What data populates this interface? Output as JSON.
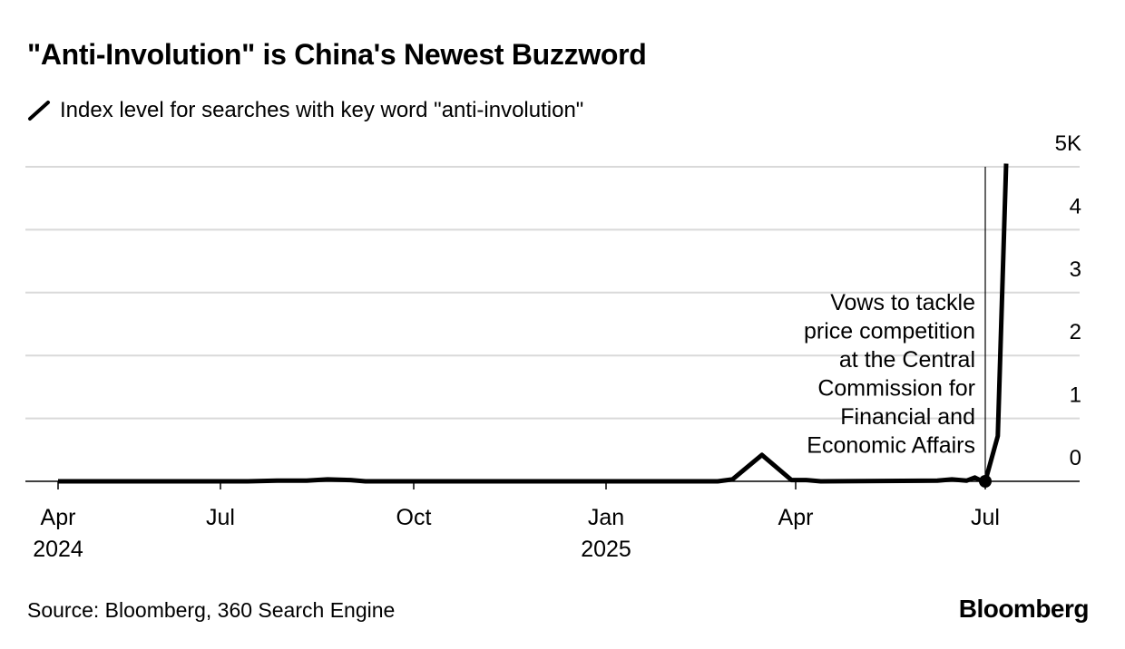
{
  "title": "\"Anti-Involution\" is China's Newest Buzzword",
  "legend": {
    "icon": "pen-line-icon",
    "label": "Index level for searches with key word \"anti-involution\""
  },
  "source": "Source: Bloomberg, 360 Search Engine",
  "logo": "Bloomberg",
  "chart_data": {
    "type": "line",
    "title": "\"Anti-Involution\" is China's Newest Buzzword",
    "ylabel": "",
    "xlabel": "",
    "ylim": [
      0,
      5
    ],
    "y_ticks": [
      "0",
      "1",
      "2",
      "3",
      "4",
      "5K"
    ],
    "y_tick_values": [
      0,
      1,
      2,
      3,
      4,
      5
    ],
    "grid": true,
    "legend": "top-left",
    "line_color": "#000000",
    "x_ticks": [
      {
        "date": "2024-04-14",
        "line1": "Apr",
        "line2": "2024"
      },
      {
        "date": "2024-07-01",
        "line1": "Jul",
        "line2": ""
      },
      {
        "date": "2024-10-01",
        "line1": "Oct",
        "line2": ""
      },
      {
        "date": "2025-01-01",
        "line1": "Jan",
        "line2": "2025"
      },
      {
        "date": "2025-04-01",
        "line1": "Apr",
        "line2": ""
      },
      {
        "date": "2025-07-01",
        "line1": "Jul",
        "line2": ""
      }
    ],
    "x_max": "2025-08-01",
    "series": [
      {
        "points": [
          [
            "2024-04-14",
            0
          ],
          [
            "2024-07-14",
            0
          ],
          [
            "2024-07-28",
            0.01
          ],
          [
            "2024-08-11",
            0.01
          ],
          [
            "2024-08-21",
            0.03
          ],
          [
            "2024-09-01",
            0.02
          ],
          [
            "2024-09-08",
            0
          ],
          [
            "2025-02-23",
            0
          ],
          [
            "2025-03-02",
            0.03
          ],
          [
            "2025-03-16",
            0.42
          ],
          [
            "2025-03-30",
            0.02
          ],
          [
            "2025-04-06",
            0.02
          ],
          [
            "2025-04-13",
            0
          ],
          [
            "2025-06-08",
            0.01
          ],
          [
            "2025-06-15",
            0.03
          ],
          [
            "2025-06-22",
            0.01
          ],
          [
            "2025-06-26",
            0.06
          ],
          [
            "2025-06-29",
            0.01
          ],
          [
            "2025-07-01",
            0
          ],
          [
            "2025-07-07",
            0.72
          ],
          [
            "2025-07-11",
            5.05
          ]
        ]
      }
    ],
    "annotation": {
      "date": "2025-07-01",
      "value": 0,
      "lines": [
        "Vows to tackle",
        "price competition",
        "at the Central",
        "Commission for",
        "Financial and",
        "Economic Affairs"
      ]
    }
  }
}
